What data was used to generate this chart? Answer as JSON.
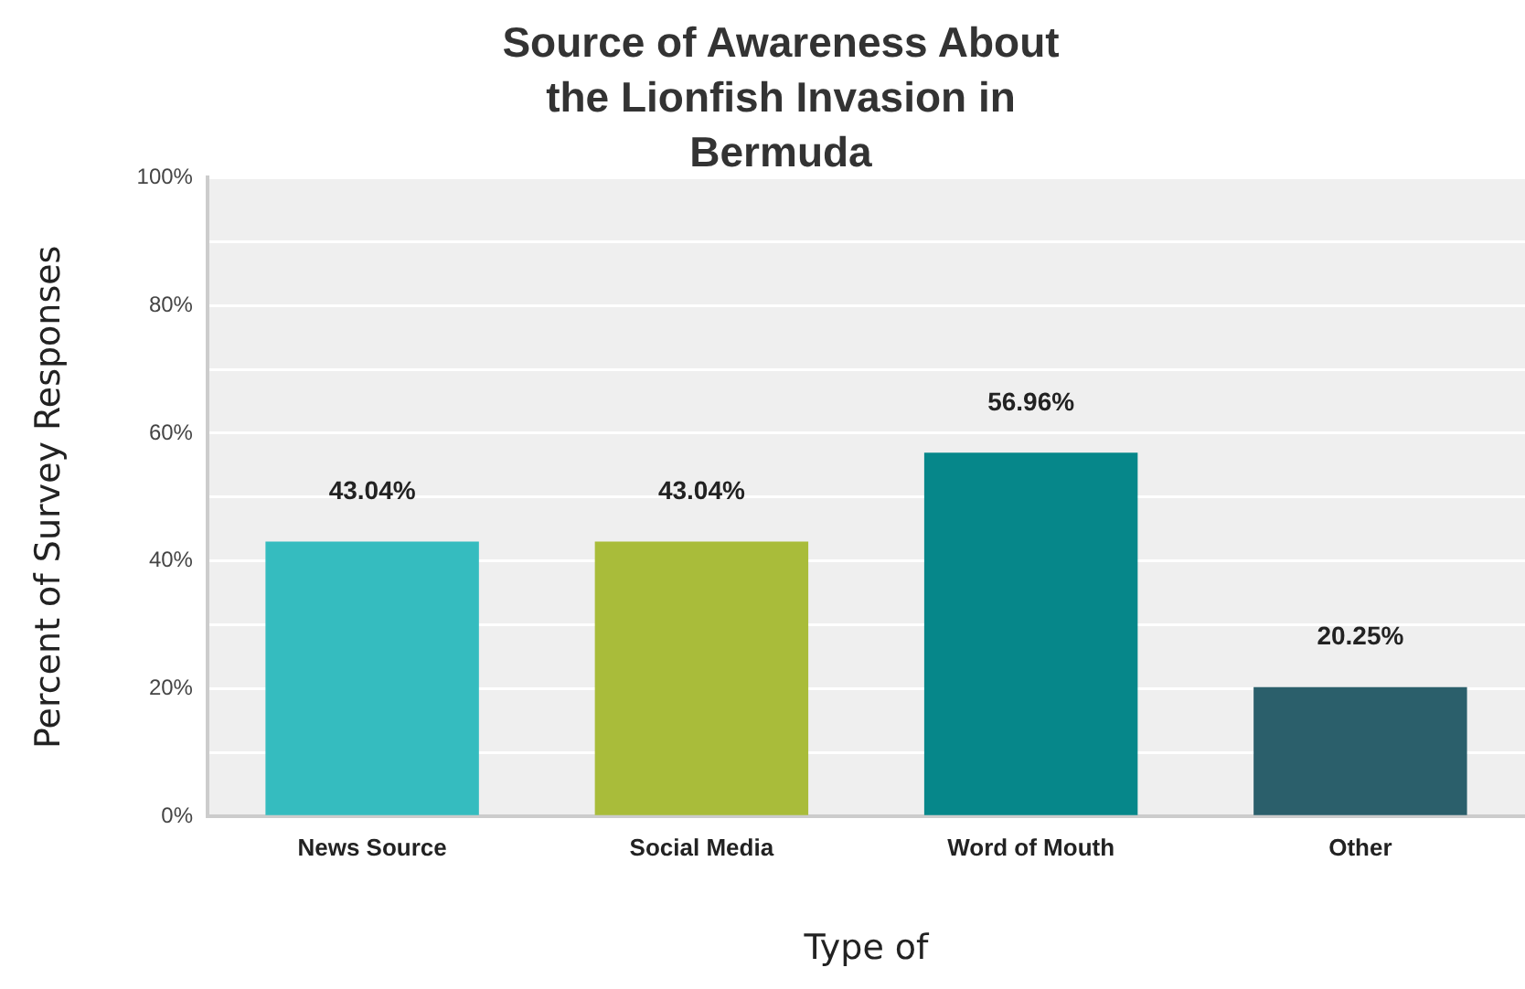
{
  "chart_data": {
    "type": "bar",
    "title": "Source of Awareness About the Lionfish Invasion in Bermuda",
    "xlabel": "Type of",
    "ylabel": "Percent of Survey Responses",
    "categories": [
      "News Source",
      "Social Media",
      "Word of Mouth",
      "Other"
    ],
    "values": [
      43.04,
      43.04,
      56.96,
      20.25
    ],
    "colors": [
      "#35bcbf",
      "#a9bc3a",
      "#06878a",
      "#2b5f6b"
    ],
    "value_labels": [
      "43.04%",
      "43.04%",
      "56.96%",
      "20.25%"
    ],
    "ylim": [
      0,
      100
    ],
    "yticks": [
      {
        "value": 0,
        "label": "0%"
      },
      {
        "value": 10,
        "label": null
      },
      {
        "value": 20,
        "label": "20%"
      },
      {
        "value": 30,
        "label": null
      },
      {
        "value": 40,
        "label": "40%"
      },
      {
        "value": 50,
        "label": null
      },
      {
        "value": 60,
        "label": "60%"
      },
      {
        "value": 70,
        "label": null
      },
      {
        "value": 80,
        "label": "80%"
      },
      {
        "value": 90,
        "label": null
      },
      {
        "value": 100,
        "label": "100%"
      }
    ],
    "grid": "y"
  }
}
